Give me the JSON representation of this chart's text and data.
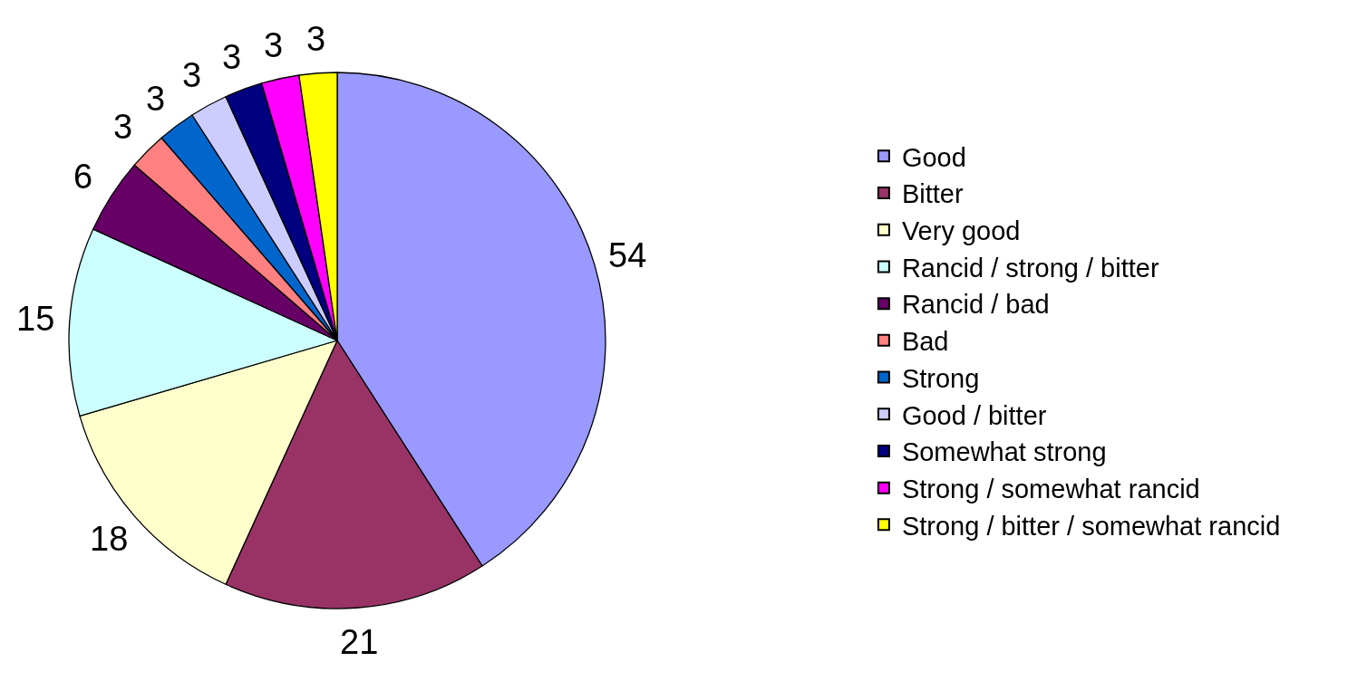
{
  "chart_data": {
    "type": "pie",
    "categories": [
      "Good",
      "Bitter",
      "Very good",
      "Rancid / strong / bitter",
      "Rancid / bad",
      "Bad",
      "Strong",
      "Good / bitter",
      "Somewhat strong",
      "Strong / somewhat rancid",
      "Strong / bitter / somewhat rancid"
    ],
    "values": [
      54,
      21,
      18,
      15,
      6,
      3,
      3,
      3,
      3,
      3,
      3
    ],
    "colors": [
      "#9999ff",
      "#993366",
      "#ffffcc",
      "#ccffff",
      "#660066",
      "#ff8080",
      "#0066cc",
      "#ccccff",
      "#000080",
      "#ff00ff",
      "#ffff00"
    ],
    "data_labels": true,
    "legend": "right"
  }
}
